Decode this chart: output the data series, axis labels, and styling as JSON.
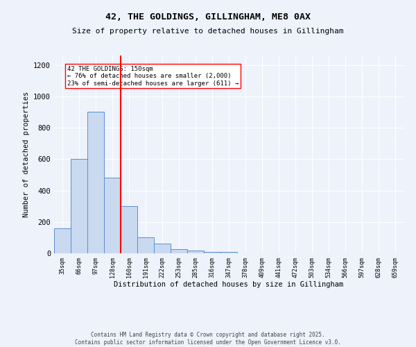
{
  "title1": "42, THE GOLDINGS, GILLINGHAM, ME8 0AX",
  "title2": "Size of property relative to detached houses in Gillingham",
  "xlabel": "Distribution of detached houses by size in Gillingham",
  "ylabel": "Number of detached properties",
  "categories": [
    "35sqm",
    "66sqm",
    "97sqm",
    "128sqm",
    "160sqm",
    "191sqm",
    "222sqm",
    "253sqm",
    "285sqm",
    "316sqm",
    "347sqm",
    "378sqm",
    "409sqm",
    "441sqm",
    "472sqm",
    "503sqm",
    "534sqm",
    "566sqm",
    "597sqm",
    "628sqm",
    "659sqm"
  ],
  "values": [
    160,
    600,
    900,
    480,
    300,
    100,
    60,
    25,
    18,
    10,
    8,
    0,
    0,
    0,
    0,
    0,
    0,
    0,
    0,
    0,
    0
  ],
  "bar_color": "#c9d9f0",
  "bar_edge_color": "#5b8fcc",
  "bar_width": 1.0,
  "vline_index": 3.5,
  "vline_color": "red",
  "annotation_text": "42 THE GOLDINGS: 150sqm\n← 76% of detached houses are smaller (2,000)\n23% of semi-detached houses are larger (611) →",
  "ylim": [
    0,
    1260
  ],
  "yticks": [
    0,
    200,
    400,
    600,
    800,
    1000,
    1200
  ],
  "bg_color": "#eef2fb",
  "grid_color": "#ffffff",
  "footer1": "Contains HM Land Registry data © Crown copyright and database right 2025.",
  "footer2": "Contains public sector information licensed under the Open Government Licence v3.0."
}
